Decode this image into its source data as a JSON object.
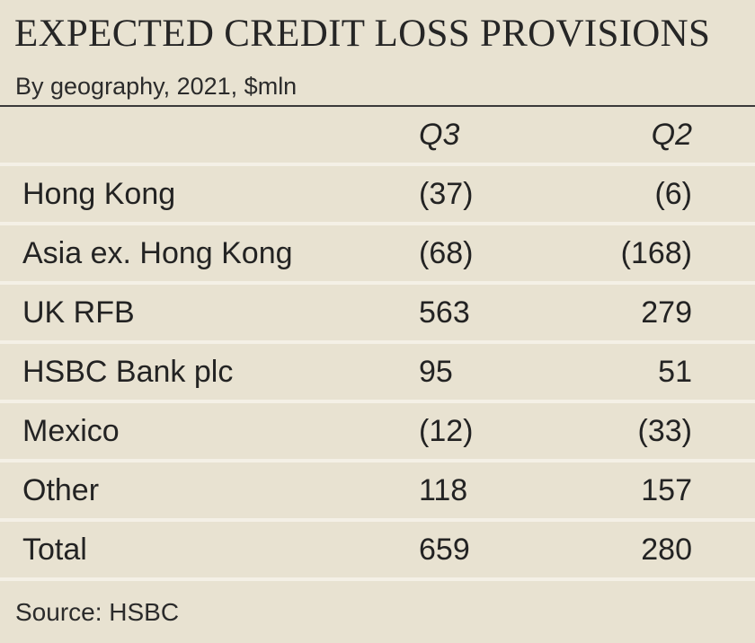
{
  "title": "EXPECTED CREDIT LOSS PROVISIONS",
  "subtitle": "By geography, 2021, $mln",
  "table": {
    "headers": [
      "",
      "Q3",
      "Q2"
    ],
    "rows": [
      {
        "label": "Hong Kong",
        "q3": "(37)",
        "q2": "(6)"
      },
      {
        "label": "Asia ex. Hong Kong",
        "q3": "(68)",
        "q2": "(168)"
      },
      {
        "label": "UK RFB",
        "q3": "563",
        "q2": "279"
      },
      {
        "label": "HSBC Bank plc",
        "q3": "95",
        "q2": "51"
      },
      {
        "label": "Mexico",
        "q3": "(12)",
        "q2": "(33)"
      },
      {
        "label": "Other",
        "q3": "118",
        "q2": "157"
      },
      {
        "label": "Total",
        "q3": "659",
        "q2": "280"
      }
    ]
  },
  "source": "Source: HSBC"
}
